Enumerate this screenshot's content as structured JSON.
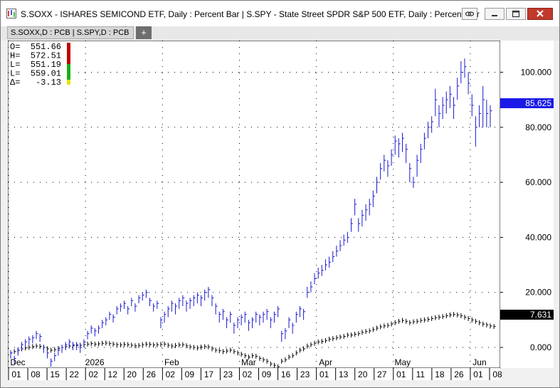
{
  "window": {
    "title": "S.SOXX - ISHARES SEMICOND ETF, Daily : Percent Bar   |   S.SPY - State Street SPDR S&P 500 ETF, Daily : Percent Bar",
    "tab_label": "S.SOXX,D : PCB   |   S.SPY,D : PCB",
    "add_tab": "+",
    "icons": [
      "app-icon",
      "link-icon",
      "minimize-icon",
      "maximize-icon",
      "close-icon"
    ]
  },
  "ohlc_panel": {
    "rows": [
      {
        "label": "O=",
        "value": "551.66"
      },
      {
        "label": "H=",
        "value": "572.51"
      },
      {
        "label": "L=",
        "value": "551.19"
      },
      {
        "label": "L=",
        "value": "559.01"
      },
      {
        "label": "Δ=",
        "value": "-3.13"
      }
    ]
  },
  "colors": {
    "soxx": "#1a1ad0",
    "spy": "#000000",
    "soxx_badge_bg": "#1a1ae8",
    "spy_badge_bg": "#000000",
    "grid": "#000000",
    "close_button": "#c0392b"
  },
  "chart_data": {
    "type": "ohlc",
    "y_ticks": [
      0,
      20,
      40,
      60,
      80,
      100
    ],
    "y_tick_labels": [
      "0.000",
      "20.000",
      "40.000",
      "60.000",
      "80.000",
      "100.000"
    ],
    "ylim": [
      -7.5,
      111.5
    ],
    "month_labels": [
      "Dec",
      "2026",
      "Feb",
      "Mar",
      "Apr",
      "May",
      "Jun"
    ],
    "date_labels": [
      "01",
      "08",
      "15",
      "22",
      "02",
      "12",
      "20",
      "26",
      "02",
      "09",
      "17",
      "23",
      "02",
      "09",
      "16",
      "23",
      "01",
      "13",
      "20",
      "27",
      "01",
      "11",
      "18",
      "26",
      "01",
      "08"
    ],
    "last_values": {
      "soxx": "85.625",
      "spy": "7.631"
    },
    "series": [
      {
        "name": "S.SOXX",
        "values": [
          -2,
          -4,
          -1,
          1,
          2,
          3,
          3.5,
          5,
          4,
          0,
          -2,
          -5,
          -3,
          -1,
          0,
          1,
          2,
          1,
          1,
          0,
          2,
          5,
          7,
          6,
          7,
          9,
          10,
          12,
          11,
          14,
          15,
          16,
          14,
          17,
          15,
          18,
          19,
          20,
          17,
          15,
          16,
          10,
          12,
          14,
          16,
          15,
          17,
          18,
          16,
          17,
          18,
          19,
          18,
          20,
          21,
          18,
          15,
          12,
          13,
          10,
          12,
          8,
          10,
          11,
          12,
          9,
          10,
          12,
          11,
          12,
          13,
          10,
          12,
          14,
          5,
          6,
          10,
          8,
          12,
          14,
          13,
          20,
          22,
          25,
          27,
          28,
          30,
          31,
          33,
          35,
          37,
          39,
          40,
          45,
          52,
          45,
          48,
          50,
          52,
          55,
          60,
          65,
          68,
          66,
          70,
          75,
          74,
          76,
          72,
          65,
          60,
          68,
          72,
          76,
          80,
          82,
          90,
          85,
          88,
          90,
          92,
          88,
          95,
          100,
          102,
          96,
          88,
          80,
          85,
          90,
          85,
          86
        ],
        "highs": [
          -1,
          -3,
          0,
          2,
          3,
          4,
          4.5,
          6,
          5,
          1,
          -1,
          -4,
          -2,
          0,
          1,
          2,
          3,
          2,
          2,
          1,
          3,
          6,
          8,
          7,
          8,
          10,
          11,
          13,
          12,
          15,
          16,
          17,
          15,
          18,
          16,
          19,
          20,
          21,
          18,
          16,
          17,
          11,
          13,
          15,
          17,
          16,
          18,
          19,
          17,
          18,
          19,
          20,
          19,
          21,
          22,
          19,
          16,
          13,
          14,
          11,
          13,
          9,
          11,
          12,
          13,
          10,
          11,
          13,
          12,
          13,
          14,
          11,
          13,
          15,
          6,
          7,
          11,
          9,
          13,
          15,
          14,
          22,
          24,
          27,
          29,
          30,
          32,
          33,
          35,
          37,
          39,
          41,
          42,
          47,
          54,
          47,
          50,
          52,
          54,
          57,
          62,
          67,
          70,
          68,
          72,
          77,
          76,
          78,
          74,
          67,
          62,
          70,
          74,
          78,
          82,
          84,
          94,
          88,
          91,
          93,
          95,
          91,
          98,
          104,
          105,
          100,
          92,
          84,
          88,
          95,
          90,
          88
        ],
        "lows": [
          -4,
          -6,
          -3,
          -1,
          0,
          1,
          1.5,
          3,
          2,
          -2,
          -4,
          -7,
          -5,
          -3,
          -2,
          -1,
          0,
          -1,
          -1,
          -2,
          0,
          3,
          5,
          4,
          5,
          7,
          8,
          10,
          9,
          12,
          13,
          14,
          12,
          15,
          13,
          16,
          17,
          18,
          15,
          13,
          14,
          7,
          9,
          11,
          13,
          12,
          14,
          15,
          13,
          14,
          15,
          16,
          15,
          17,
          18,
          15,
          12,
          9,
          10,
          7,
          9,
          5,
          7,
          8,
          9,
          6,
          7,
          9,
          8,
          9,
          10,
          7,
          9,
          11,
          2,
          3,
          7,
          5,
          9,
          11,
          10,
          18,
          20,
          23,
          25,
          26,
          28,
          29,
          31,
          33,
          35,
          37,
          38,
          42,
          48,
          42,
          44,
          46,
          48,
          51,
          56,
          61,
          64,
          62,
          66,
          70,
          69,
          71,
          67,
          60,
          58,
          62,
          67,
          72,
          76,
          78,
          84,
          80,
          83,
          85,
          87,
          83,
          90,
          96,
          98,
          92,
          84,
          73,
          80,
          80,
          80,
          80
        ]
      },
      {
        "name": "S.SPY",
        "values": [
          -2,
          -1.5,
          -1,
          -0.5,
          -0.2,
          0,
          0.3,
          0.5,
          0.4,
          0,
          -0.5,
          -1,
          -0.8,
          -0.4,
          0,
          0.3,
          0.5,
          0.6,
          0.7,
          0.8,
          1,
          1.2,
          1.4,
          1.2,
          1.3,
          1.5,
          1.6,
          1.4,
          1.2,
          1.0,
          0.9,
          1.1,
          1.0,
          0.8,
          0.6,
          0.7,
          1.0,
          1.2,
          1.1,
          0.9,
          1.0,
          1.1,
          1.2,
          0.8,
          0.5,
          0.7,
          0.9,
          1.0,
          0.6,
          0.2,
          0,
          -0.2,
          0.1,
          0.3,
          0.2,
          -0.5,
          -1,
          -1.2,
          -1.5,
          -1.3,
          -1,
          -1.5,
          -2,
          -2.5,
          -3,
          -3.5,
          -3,
          -3.2,
          -4,
          -4.5,
          -5,
          -6,
          -6.5,
          -7,
          -5,
          -4.5,
          -3.5,
          -3,
          -2,
          -1,
          -0.5,
          0.5,
          1,
          1.5,
          2,
          2.2,
          2.5,
          3,
          3.2,
          3.5,
          3.8,
          4,
          4.5,
          4.5,
          4.8,
          5,
          5.5,
          5.8,
          6,
          6.5,
          7,
          7.5,
          7.8,
          8,
          8.5,
          9,
          9.5,
          9.8,
          9.5,
          9,
          9.3,
          9.5,
          9.8,
          10,
          10.2,
          10.5,
          10.8,
          11,
          11.2,
          11.5,
          11.8,
          12,
          11.8,
          11.5,
          11,
          10.5,
          10,
          9.5,
          9,
          8.5,
          8.2,
          7.8,
          7.6
        ]
      }
    ]
  }
}
